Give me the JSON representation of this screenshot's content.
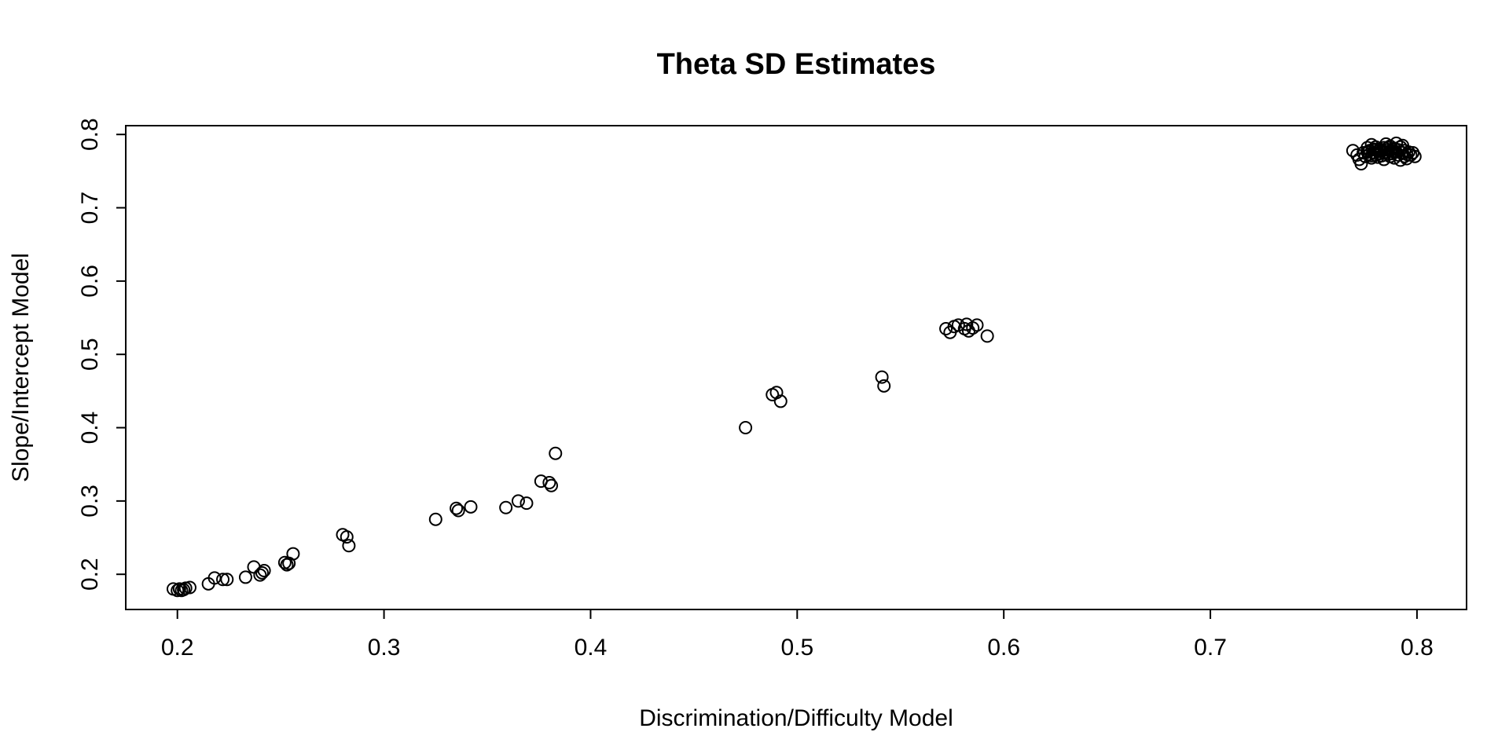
{
  "chart_data": {
    "type": "scatter",
    "title": "Theta SD Estimates",
    "xlabel": "Discrimination/Difficulty Model",
    "ylabel": "Slope/Intercept Model",
    "xlim": [
      0.175,
      0.824
    ],
    "ylim": [
      0.152,
      0.812
    ],
    "xticks": [
      0.2,
      0.3,
      0.4,
      0.5,
      0.6,
      0.7,
      0.8
    ],
    "xtick_labels": [
      "0.2",
      "0.3",
      "0.4",
      "0.5",
      "0.6",
      "0.7",
      "0.8"
    ],
    "yticks": [
      0.2,
      0.3,
      0.4,
      0.5,
      0.6,
      0.7,
      0.8
    ],
    "ytick_labels": [
      "0.2",
      "0.3",
      "0.4",
      "0.5",
      "0.6",
      "0.7",
      "0.8"
    ],
    "grid": false,
    "marker": "open-circle",
    "marker_color": "#000000",
    "series": [
      {
        "points": [
          [
            0.198,
            0.18
          ],
          [
            0.2,
            0.178
          ],
          [
            0.201,
            0.18
          ],
          [
            0.202,
            0.178
          ],
          [
            0.203,
            0.179
          ],
          [
            0.204,
            0.181
          ],
          [
            0.206,
            0.182
          ],
          [
            0.215,
            0.187
          ],
          [
            0.218,
            0.195
          ],
          [
            0.222,
            0.193
          ],
          [
            0.224,
            0.193
          ],
          [
            0.233,
            0.196
          ],
          [
            0.237,
            0.21
          ],
          [
            0.24,
            0.199
          ],
          [
            0.241,
            0.202
          ],
          [
            0.242,
            0.205
          ],
          [
            0.252,
            0.216
          ],
          [
            0.253,
            0.213
          ],
          [
            0.254,
            0.215
          ],
          [
            0.256,
            0.228
          ],
          [
            0.28,
            0.254
          ],
          [
            0.282,
            0.251
          ],
          [
            0.283,
            0.239
          ],
          [
            0.325,
            0.275
          ],
          [
            0.335,
            0.29
          ],
          [
            0.336,
            0.287
          ],
          [
            0.342,
            0.292
          ],
          [
            0.359,
            0.291
          ],
          [
            0.365,
            0.3
          ],
          [
            0.369,
            0.297
          ],
          [
            0.376,
            0.327
          ],
          [
            0.38,
            0.325
          ],
          [
            0.381,
            0.321
          ],
          [
            0.383,
            0.365
          ],
          [
            0.475,
            0.4
          ],
          [
            0.488,
            0.445
          ],
          [
            0.49,
            0.448
          ],
          [
            0.492,
            0.436
          ],
          [
            0.541,
            0.469
          ],
          [
            0.542,
            0.457
          ],
          [
            0.572,
            0.535
          ],
          [
            0.574,
            0.53
          ],
          [
            0.576,
            0.538
          ],
          [
            0.578,
            0.54
          ],
          [
            0.581,
            0.535
          ],
          [
            0.582,
            0.541
          ],
          [
            0.583,
            0.532
          ],
          [
            0.585,
            0.536
          ],
          [
            0.587,
            0.54
          ],
          [
            0.592,
            0.525
          ],
          [
            0.769,
            0.778
          ],
          [
            0.771,
            0.772
          ],
          [
            0.772,
            0.766
          ],
          [
            0.773,
            0.76
          ],
          [
            0.774,
            0.775
          ],
          [
            0.775,
            0.77
          ],
          [
            0.776,
            0.782
          ],
          [
            0.777,
            0.778
          ],
          [
            0.777,
            0.773
          ],
          [
            0.778,
            0.786
          ],
          [
            0.778,
            0.768
          ],
          [
            0.779,
            0.78
          ],
          [
            0.779,
            0.775
          ],
          [
            0.78,
            0.772
          ],
          [
            0.78,
            0.783
          ],
          [
            0.781,
            0.777
          ],
          [
            0.781,
            0.769
          ],
          [
            0.782,
            0.78
          ],
          [
            0.782,
            0.774
          ],
          [
            0.783,
            0.778
          ],
          [
            0.783,
            0.771
          ],
          [
            0.784,
            0.766
          ],
          [
            0.784,
            0.782
          ],
          [
            0.785,
            0.776
          ],
          [
            0.785,
            0.787
          ],
          [
            0.786,
            0.773
          ],
          [
            0.786,
            0.779
          ],
          [
            0.787,
            0.77
          ],
          [
            0.787,
            0.784
          ],
          [
            0.788,
            0.777
          ],
          [
            0.788,
            0.774
          ],
          [
            0.789,
            0.781
          ],
          [
            0.789,
            0.768
          ],
          [
            0.79,
            0.788
          ],
          [
            0.79,
            0.776
          ],
          [
            0.791,
            0.772
          ],
          [
            0.791,
            0.779
          ],
          [
            0.792,
            0.783
          ],
          [
            0.792,
            0.765
          ],
          [
            0.793,
            0.775
          ],
          [
            0.793,
            0.785
          ],
          [
            0.794,
            0.77
          ],
          [
            0.794,
            0.778
          ],
          [
            0.795,
            0.773
          ],
          [
            0.795,
            0.767
          ],
          [
            0.796,
            0.776
          ],
          [
            0.797,
            0.772
          ],
          [
            0.798,
            0.775
          ],
          [
            0.799,
            0.77
          ],
          [
            0.776,
            0.776
          ],
          [
            0.78,
            0.779
          ],
          [
            0.784,
            0.775
          ],
          [
            0.788,
            0.78
          ],
          [
            0.778,
            0.771
          ],
          [
            0.786,
            0.782
          ]
        ]
      }
    ]
  }
}
